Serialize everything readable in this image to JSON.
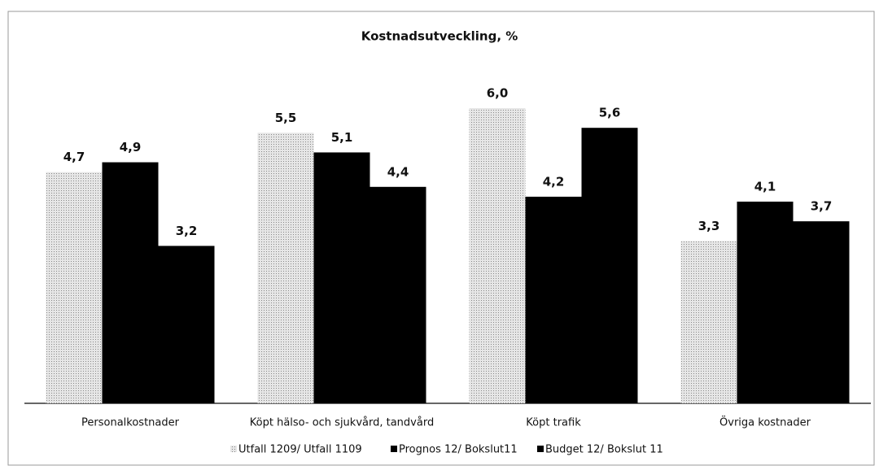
{
  "chart_data": {
    "type": "bar",
    "title": "Kostnadsutveckling, %",
    "categories": [
      "Personalkostnader",
      "Köpt hälso- och sjukvård, tandvård",
      "Köpt trafik",
      "Övriga kostnader"
    ],
    "series": [
      {
        "name": "Utfall 1209/ Utfall 1109",
        "color": "#cfcfcf",
        "values": [
          4.7,
          5.5,
          6.0,
          3.3
        ],
        "value_labels": [
          "4,7",
          "5,5",
          "6,0",
          "3,3"
        ]
      },
      {
        "name": "Prognos 12/ Bokslut11",
        "color": "#000000",
        "values": [
          4.9,
          5.1,
          4.2,
          4.1
        ],
        "value_labels": [
          "4,9",
          "5,1",
          "4,2",
          "4,1"
        ]
      },
      {
        "name": "Budget 12/ Bokslut 11",
        "color": "#000000",
        "values": [
          3.2,
          4.4,
          5.6,
          3.7
        ],
        "value_labels": [
          "3,2",
          "4,4",
          "5,6",
          "3,7"
        ]
      }
    ],
    "legend": "bottom"
  }
}
